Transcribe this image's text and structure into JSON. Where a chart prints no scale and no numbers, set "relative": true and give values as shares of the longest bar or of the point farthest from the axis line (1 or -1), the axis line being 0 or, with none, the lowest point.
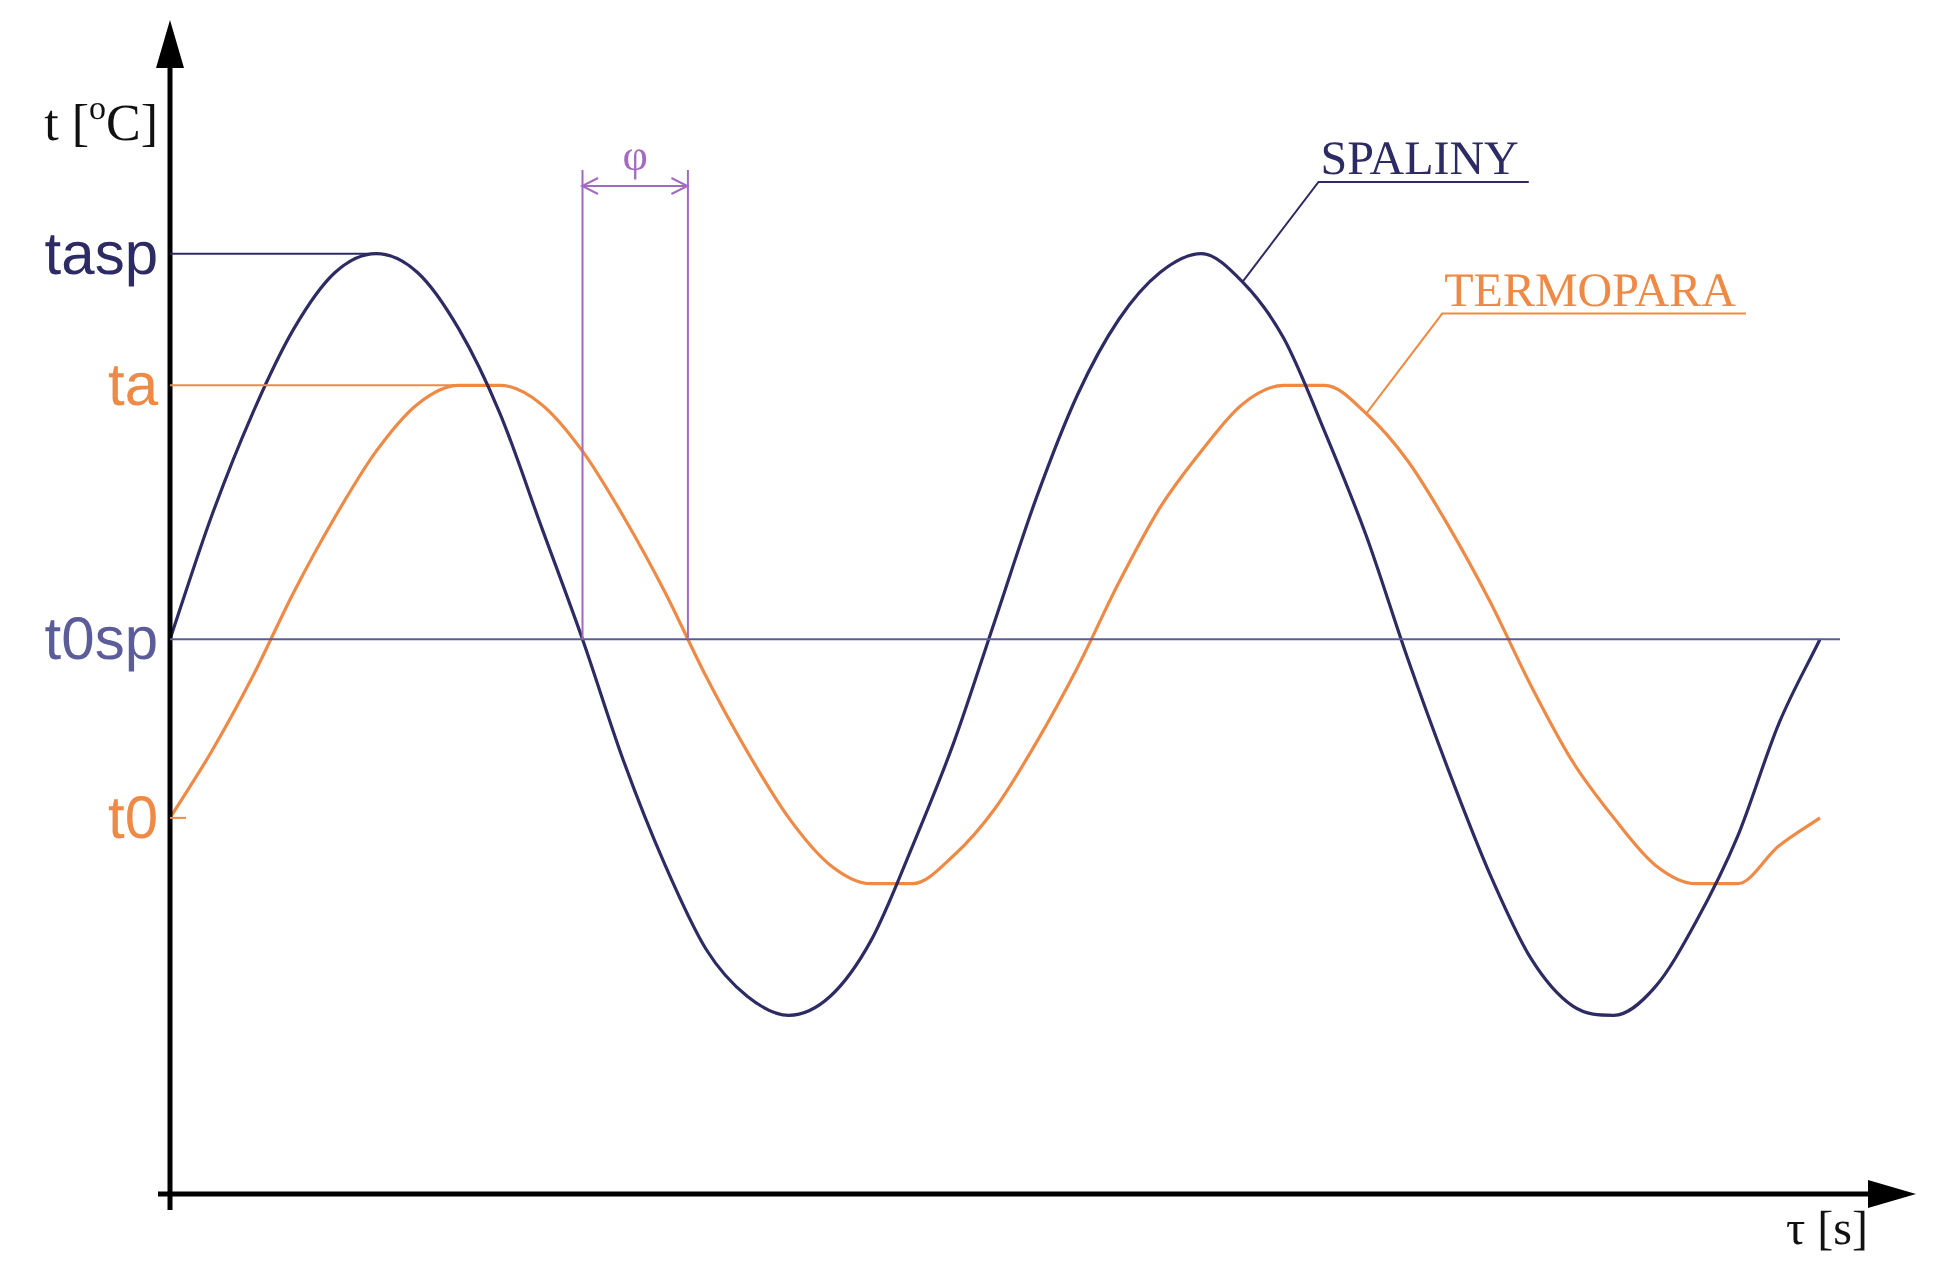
{
  "chart_data": {
    "type": "line",
    "relative": true,
    "xlabel": "τ [s]",
    "ylabel": "t [$^{o}$C]",
    "categories": [
      null,
      null,
      null,
      null,
      null,
      null,
      null,
      null,
      null,
      null,
      null,
      null,
      null,
      null,
      null,
      null,
      null,
      null,
      null,
      null,
      null,
      null,
      null,
      null,
      null,
      null,
      null,
      null,
      null,
      null,
      null,
      null,
      null,
      null,
      null,
      null,
      null,
      null,
      null,
      null,
      null
    ],
    "series": [
      {
        "name": "SPALINY",
        "color": "#2d2b63",
        "values": [
          0.59,
          0.72,
          0.83,
          0.92,
          0.98,
          1,
          0.98,
          0.92,
          0.83,
          0.71,
          0.59,
          0.46,
          0.35,
          0.26,
          0.21,
          0.19,
          0.21,
          0.27,
          0.37,
          0.48,
          0.61,
          0.74,
          0.85,
          0.93,
          0.98,
          1,
          0.97,
          0.91,
          0.81,
          0.7,
          0.57,
          0.45,
          0.34,
          0.25,
          0.2,
          0.19,
          0.22,
          0.29,
          0.38,
          0.5,
          0.59
        ]
      },
      {
        "name": "TERMOPARA",
        "color": "#ee8a45",
        "values": [
          0.4,
          0.47,
          0.55,
          0.64,
          0.72,
          0.79,
          0.84,
          0.86,
          0.86,
          0.84,
          0.79,
          0.72,
          0.64,
          0.55,
          0.47,
          0.4,
          0.35,
          0.33,
          0.33,
          0.36,
          0.41,
          0.48,
          0.56,
          0.65,
          0.73,
          0.79,
          0.84,
          0.86,
          0.86,
          0.83,
          0.78,
          0.71,
          0.63,
          0.54,
          0.46,
          0.4,
          0.35,
          0.33,
          0.33,
          0.37,
          0.4
        ]
      }
    ],
    "ref_lines": [
      {
        "axis": "y",
        "value": 1,
        "label": "tasp"
      },
      {
        "axis": "y",
        "value": 0.86,
        "label": "ta"
      },
      {
        "axis": "y",
        "value": 0.59,
        "label": "t0sp",
        "color": "#5c5c9a"
      },
      {
        "axis": "y",
        "value": 0.4,
        "label": "t0"
      }
    ],
    "annotations": [
      "φ"
    ],
    "legend": false,
    "marker": "none",
    "line_style": "solid"
  }
}
